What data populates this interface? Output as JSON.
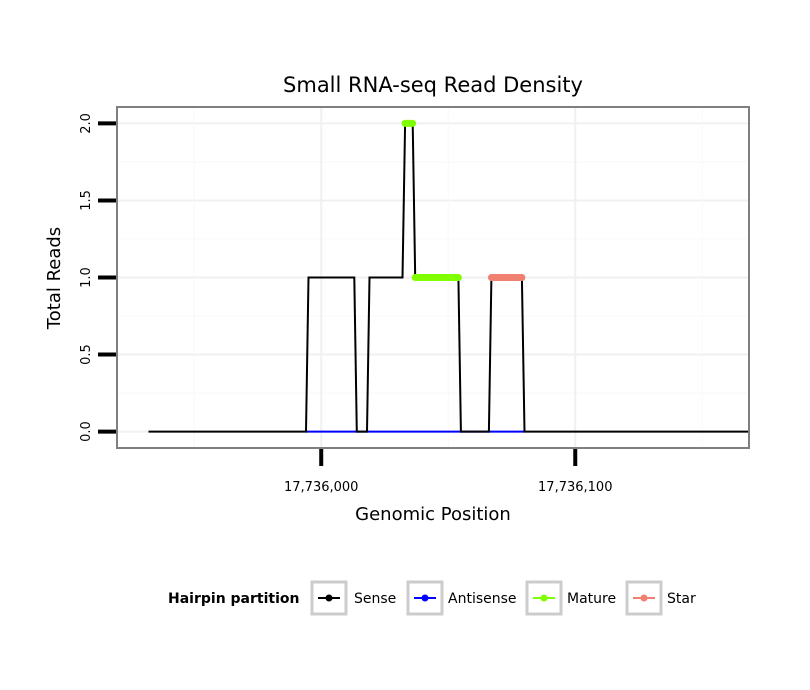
{
  "chart_data": {
    "type": "line",
    "title": "Small RNA-seq Read Density",
    "xlabel": "Genomic Position",
    "ylabel": "Total Reads",
    "xlim": [
      17735920,
      17736168
    ],
    "ylim": [
      -0.1,
      2.1
    ],
    "x_ticks": [
      17736000,
      17736100
    ],
    "x_tick_labels": [
      "17,736,000",
      "17,736,100"
    ],
    "y_ticks": [
      0,
      0.5,
      1,
      1.5,
      2
    ],
    "y_tick_labels": [
      "0.0",
      "0.5",
      "1.0",
      "1.5",
      "2.0"
    ],
    "grid": true,
    "legend_position": "bottom",
    "series": [
      {
        "name": "Sense",
        "color": "#000000",
        "style": "line",
        "x": [
          17735932,
          17735994,
          17735995,
          17736013,
          17736014,
          17736018,
          17736019,
          17736032,
          17736033,
          17736036,
          17736037,
          17736054,
          17736055,
          17736066,
          17736067,
          17736079,
          17736080,
          17736168
        ],
        "y": [
          0,
          0,
          1,
          1,
          0,
          0,
          1,
          1,
          2,
          2,
          1,
          1,
          0,
          0,
          1,
          1,
          0,
          0
        ]
      },
      {
        "name": "Antisense",
        "color": "#0000ff",
        "style": "line",
        "x": [
          17735994,
          17736080
        ],
        "y": [
          0,
          0
        ]
      },
      {
        "name": "Mature",
        "color": "#7fff00",
        "style": "segments",
        "segments": [
          {
            "x": [
              17736033,
              17736036
            ],
            "y": 2
          },
          {
            "x": [
              17736037,
              17736054
            ],
            "y": 1
          }
        ]
      },
      {
        "name": "Star",
        "color": "#f08070",
        "style": "segments",
        "segments": [
          {
            "x": [
              17736067,
              17736079
            ],
            "y": 1
          }
        ]
      }
    ],
    "legend_title": "Hairpin partition",
    "legend": [
      "Sense",
      "Antisense",
      "Mature",
      "Star"
    ]
  }
}
